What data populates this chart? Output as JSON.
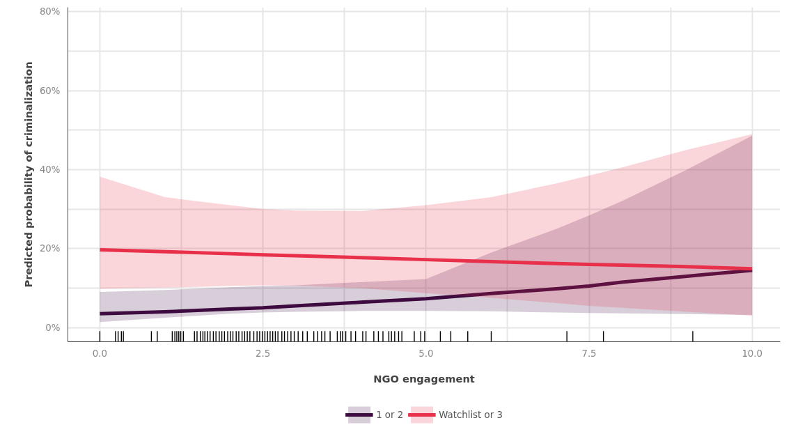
{
  "chart_data": {
    "type": "line",
    "xlabel": "NGO engagement",
    "ylabel": "Predicted probability of criminalization",
    "x": [
      0,
      1,
      2,
      2.5,
      3,
      4,
      5,
      6,
      7,
      7.5,
      8,
      9,
      10
    ],
    "series": [
      {
        "name": "1 or 2",
        "color": "#3d0b3f",
        "values": [
          3.5,
          4,
          4.7,
          5,
          5.5,
          6.4,
          7.3,
          8.6,
          9.8,
          10.5,
          11.5,
          13,
          14.5
        ],
        "lower": [
          1.4,
          2.5,
          3.5,
          3.8,
          4,
          4.2,
          4.2,
          4.1,
          3.8,
          3.7,
          3.6,
          3.4,
          3.2
        ],
        "upper": [
          9,
          9.5,
          10.2,
          10.5,
          10.7,
          11.5,
          12.3,
          19,
          25,
          28.4,
          32,
          40,
          48.6
        ]
      },
      {
        "name": "Watchlist or 3",
        "color": "#e8304a",
        "values": [
          19.7,
          19.2,
          18.7,
          18.4,
          18.2,
          17.7,
          17.2,
          16.7,
          16.2,
          16.0,
          15.8,
          15.4,
          14.9
        ],
        "lower": [
          9.8,
          10.1,
          10.5,
          10.7,
          10.6,
          10,
          8.7,
          7.5,
          6.2,
          5.5,
          5,
          4,
          3
        ],
        "upper": [
          38.2,
          33,
          31,
          30,
          29.6,
          29.5,
          31,
          33,
          36.5,
          38.5,
          40.5,
          45,
          49
        ]
      },
      {
        "type": "bar",
        "color": "#000000",
        "base": [
          -3.6,
          -3.6,
          -3.6,
          -3.6,
          -3.6,
          -3.6,
          -3.6,
          -3.6,
          -3.6,
          -3.6,
          -3.6,
          -3.6,
          -3.6,
          -3.6,
          -3.6,
          -3.6,
          -3.6,
          -3.6,
          -3.6,
          -3.6,
          -3.6,
          -3.6,
          -3.6,
          -3.6,
          -3.6,
          -3.6,
          -3.6,
          -3.6,
          -3.6,
          -3.6,
          -3.6,
          -3.6,
          -3.6,
          -3.6,
          -3.6,
          -3.6,
          -3.6,
          -3.6,
          -3.6,
          -3.6,
          -3.6,
          -3.6,
          -3.6,
          -3.6,
          -3.6,
          -3.6,
          -3.6,
          -3.6,
          -3.6,
          -3.6,
          -3.6,
          -3.6,
          -3.6,
          -3.6,
          -3.6,
          -3.6,
          -3.6,
          -3.6,
          -3.6,
          -3.6,
          -3.6,
          -3.6,
          -3.6,
          -3.6,
          -3.6,
          -3.6,
          -3.6,
          -3.6,
          -3.6,
          -3.6,
          -3.6,
          -3.6,
          -3.6,
          -3.6,
          -3.6,
          -3.6,
          -3.6,
          -3.6,
          -3.6,
          -3.6,
          -3.6,
          -3.6,
          -3.6
        ],
        "x": [
          0,
          0.24,
          0.28,
          0.33,
          0.36,
          0.79,
          0.88,
          1.11,
          1.15,
          1.18,
          1.21,
          1.24,
          1.28,
          1.45,
          1.49,
          1.54,
          1.58,
          1.61,
          1.65,
          1.69,
          1.74,
          1.78,
          1.83,
          1.87,
          1.91,
          1.96,
          2.0,
          2.04,
          2.09,
          2.13,
          2.18,
          2.22,
          2.26,
          2.3,
          2.36,
          2.41,
          2.45,
          2.49,
          2.53,
          2.57,
          2.61,
          2.65,
          2.69,
          2.73,
          2.79,
          2.83,
          2.88,
          2.93,
          2.98,
          3.04,
          3.11,
          3.18,
          3.28,
          3.34,
          3.4,
          3.45,
          3.53,
          3.64,
          3.69,
          3.72,
          3.77,
          3.85,
          3.92,
          4.03,
          4.08,
          4.2,
          4.27,
          4.34,
          4.43,
          4.47,
          4.52,
          4.58,
          4.63,
          4.82,
          4.92,
          4.98,
          5.22,
          5.38,
          5.64,
          6.0,
          7.16,
          7.72,
          9.09
        ],
        "values": [
          2.7,
          2.7,
          2.7,
          2.7,
          2.7,
          2.7,
          2.7,
          2.7,
          2.7,
          2.7,
          2.7,
          2.7,
          2.7,
          2.7,
          2.7,
          2.7,
          2.7,
          2.7,
          2.7,
          2.7,
          2.7,
          2.7,
          2.7,
          2.7,
          2.7,
          2.7,
          2.7,
          2.7,
          2.7,
          2.7,
          2.7,
          2.7,
          2.7,
          2.7,
          2.7,
          2.7,
          2.7,
          2.7,
          2.7,
          2.7,
          2.7,
          2.7,
          2.7,
          2.7,
          2.7,
          2.7,
          2.7,
          2.7,
          2.7,
          2.7,
          2.7,
          2.7,
          2.7,
          2.7,
          2.7,
          2.7,
          2.7,
          2.7,
          2.7,
          2.7,
          2.7,
          2.7,
          2.7,
          2.7,
          2.7,
          2.7,
          2.7,
          2.7,
          2.7,
          2.7,
          2.7,
          2.7,
          2.7,
          2.7,
          2.7,
          2.7,
          2.7,
          2.7,
          2.7,
          2.7,
          2.7,
          2.7,
          2.7
        ]
      }
    ],
    "xlim": [
      -0.49,
      10.43
    ],
    "ylim": [
      -3.6,
      81.1
    ],
    "xticks": [
      {
        "value": 0,
        "label": "0.0"
      },
      {
        "value": 1.25,
        "label": null
      },
      {
        "value": 2.5,
        "label": "2.5"
      },
      {
        "value": 3.75,
        "label": null
      },
      {
        "value": 5,
        "label": "5.0"
      },
      {
        "value": 6.25,
        "label": null
      },
      {
        "value": 7.5,
        "label": "7.5"
      },
      {
        "value": 8.75,
        "label": null
      },
      {
        "value": 10,
        "label": "10.0"
      }
    ],
    "yticks": [
      {
        "value": 0,
        "label": "0%"
      },
      {
        "value": 10,
        "label": null
      },
      {
        "value": 20,
        "label": "20%"
      },
      {
        "value": 30,
        "label": null
      },
      {
        "value": 40,
        "label": "40%"
      },
      {
        "value": 50,
        "label": null
      },
      {
        "value": 60,
        "label": "60%"
      },
      {
        "value": 70,
        "label": null
      },
      {
        "value": 80,
        "label": "80%"
      }
    ],
    "grid": true,
    "legend": "bottom",
    "marker": "none",
    "line_style": "solid"
  }
}
